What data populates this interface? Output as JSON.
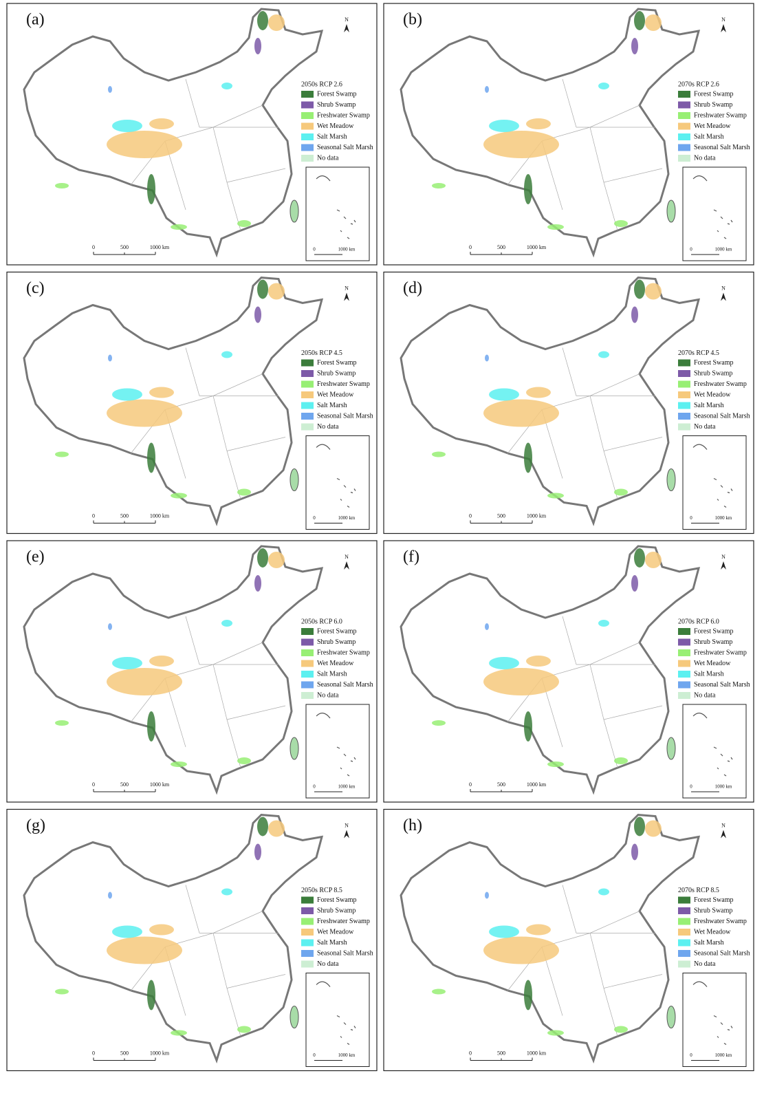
{
  "panels": [
    {
      "label": "(a)",
      "title": "2050s RCP 2.6"
    },
    {
      "label": "(b)",
      "title": "2070s RCP 2.6"
    },
    {
      "label": "(c)",
      "title": "2050s RCP 4.5"
    },
    {
      "label": "(d)",
      "title": "2070s RCP 4.5"
    },
    {
      "label": "(e)",
      "title": "2050s RCP 6.0"
    },
    {
      "label": "(f)",
      "title": "2070s RCP 6.0"
    },
    {
      "label": "(g)",
      "title": "2050s RCP 8.5"
    },
    {
      "label": "(h)",
      "title": "2070s RCP 8.5"
    }
  ],
  "legend": [
    {
      "name": "Forest Swamp",
      "color": "#3b7d3b"
    },
    {
      "name": "Shrub Swamp",
      "color": "#7d5aa8"
    },
    {
      "name": "Freshwater Swamp",
      "color": "#98ef74"
    },
    {
      "name": "Wet Meadow",
      "color": "#f6c97c"
    },
    {
      "name": "Salt Marsh",
      "color": "#5cf0f0"
    },
    {
      "name": "Seasonal Salt Marsh",
      "color": "#6fa6ee"
    },
    {
      "name": "No data",
      "color": "#cdeed3"
    }
  ],
  "north": "N",
  "scale_bar": [
    "0",
    "500",
    "1000 km"
  ],
  "inset_scale": [
    "0",
    "1000 km"
  ]
}
